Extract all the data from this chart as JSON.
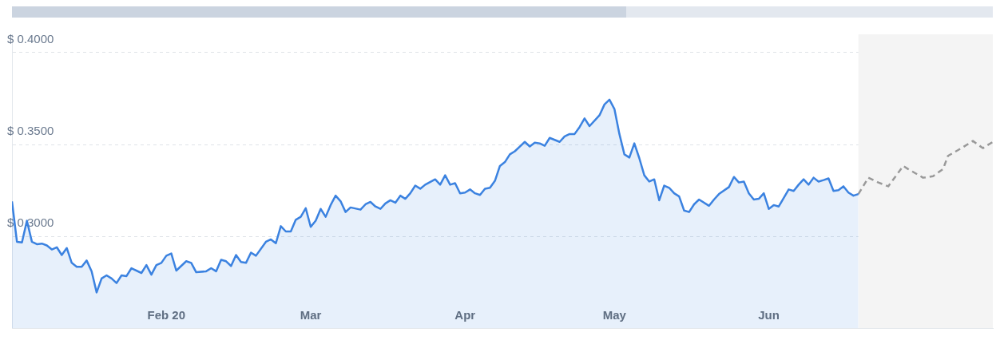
{
  "chart_data": {
    "type": "area",
    "xlim": [
      "2020-01-01",
      "2020-07-16"
    ],
    "xticks": [
      {
        "value": "2020-02-01",
        "label": "Feb 20"
      },
      {
        "value": "2020-03-01",
        "label": "Mar"
      },
      {
        "value": "2020-04-01",
        "label": "Apr"
      },
      {
        "value": "2020-05-01",
        "label": "May"
      },
      {
        "value": "2020-06-01",
        "label": "Jun"
      }
    ],
    "ylim": [
      0.25,
      0.41
    ],
    "yticks": [
      {
        "value": 0.3,
        "label": "$ 0.3000"
      },
      {
        "value": 0.35,
        "label": "$ 0.3500"
      },
      {
        "value": 0.4,
        "label": "$ 0.4000"
      }
    ],
    "grid": "y",
    "legend": false,
    "marker": "none",
    "bands": [
      {
        "axis": "x",
        "from": "2020-06-19",
        "to": "2020-07-16",
        "color": "#f4f4f4"
      }
    ],
    "series": [
      {
        "color": "#3b82e0",
        "line_style": "solid",
        "x": [
          "2020-01-01",
          "2020-01-02",
          "2020-01-03",
          "2020-01-04",
          "2020-01-05",
          "2020-01-06",
          "2020-01-07",
          "2020-01-08",
          "2020-01-09",
          "2020-01-10",
          "2020-01-11",
          "2020-01-12",
          "2020-01-13",
          "2020-01-14",
          "2020-01-15",
          "2020-01-16",
          "2020-01-17",
          "2020-01-18",
          "2020-01-19",
          "2020-01-20",
          "2020-01-21",
          "2020-01-22",
          "2020-01-23",
          "2020-01-24",
          "2020-01-25",
          "2020-01-27",
          "2020-01-28",
          "2020-01-29",
          "2020-01-30",
          "2020-01-31",
          "2020-02-01",
          "2020-02-02",
          "2020-02-03",
          "2020-02-05",
          "2020-02-06",
          "2020-02-07",
          "2020-02-09",
          "2020-02-10",
          "2020-02-11",
          "2020-02-12",
          "2020-02-13",
          "2020-02-14",
          "2020-02-15",
          "2020-02-16",
          "2020-02-17",
          "2020-02-18",
          "2020-02-19",
          "2020-02-21",
          "2020-02-22",
          "2020-02-23",
          "2020-02-24",
          "2020-02-25",
          "2020-02-26",
          "2020-02-27",
          "2020-02-28",
          "2020-02-29",
          "2020-03-01",
          "2020-03-02",
          "2020-03-03",
          "2020-03-04",
          "2020-03-05",
          "2020-03-06",
          "2020-03-07",
          "2020-03-08",
          "2020-03-09",
          "2020-03-11",
          "2020-03-12",
          "2020-03-13",
          "2020-03-14",
          "2020-03-15",
          "2020-03-16",
          "2020-03-17",
          "2020-03-18",
          "2020-03-19",
          "2020-03-20",
          "2020-03-21",
          "2020-03-22",
          "2020-03-23",
          "2020-03-24",
          "2020-03-26",
          "2020-03-27",
          "2020-03-28",
          "2020-03-29",
          "2020-03-30",
          "2020-03-31",
          "2020-04-01",
          "2020-04-02",
          "2020-04-03",
          "2020-04-04",
          "2020-04-05",
          "2020-04-06",
          "2020-04-07",
          "2020-04-08",
          "2020-04-09",
          "2020-04-10",
          "2020-04-11",
          "2020-04-12",
          "2020-04-13",
          "2020-04-14",
          "2020-04-15",
          "2020-04-16",
          "2020-04-17",
          "2020-04-18",
          "2020-04-20",
          "2020-04-21",
          "2020-04-22",
          "2020-04-23",
          "2020-04-24",
          "2020-04-25",
          "2020-04-26",
          "2020-04-28",
          "2020-04-29",
          "2020-04-30",
          "2020-05-01",
          "2020-05-02",
          "2020-05-03",
          "2020-05-04",
          "2020-05-05",
          "2020-05-06",
          "2020-05-07",
          "2020-05-08",
          "2020-05-09",
          "2020-05-10",
          "2020-05-11",
          "2020-05-12",
          "2020-05-13",
          "2020-05-14",
          "2020-05-15",
          "2020-05-16",
          "2020-05-17",
          "2020-05-18",
          "2020-05-20",
          "2020-05-21",
          "2020-05-22",
          "2020-05-24",
          "2020-05-25",
          "2020-05-26",
          "2020-05-27",
          "2020-05-28",
          "2020-05-29",
          "2020-05-30",
          "2020-05-31",
          "2020-06-01",
          "2020-06-02",
          "2020-06-03",
          "2020-06-05",
          "2020-06-06",
          "2020-06-07",
          "2020-06-08",
          "2020-06-09",
          "2020-06-10",
          "2020-06-11",
          "2020-06-12",
          "2020-06-13",
          "2020-06-14",
          "2020-06-15",
          "2020-06-16",
          "2020-06-17",
          "2020-06-18",
          "2020-06-19"
        ],
        "values": [
          0.319,
          0.297,
          0.2966,
          0.3085,
          0.297,
          0.2957,
          0.296,
          0.295,
          0.2928,
          0.294,
          0.2898,
          0.2936,
          0.2855,
          0.2834,
          0.2834,
          0.2868,
          0.2809,
          0.2694,
          0.277,
          0.2787,
          0.277,
          0.2745,
          0.2787,
          0.2783,
          0.2826,
          0.28,
          0.2843,
          0.2791,
          0.2843,
          0.2855,
          0.2894,
          0.2906,
          0.2813,
          0.2864,
          0.2855,
          0.2804,
          0.2809,
          0.2826,
          0.2809,
          0.2872,
          0.2864,
          0.2838,
          0.2898,
          0.286,
          0.2855,
          0.2911,
          0.2894,
          0.297,
          0.2983,
          0.2962,
          0.3055,
          0.3026,
          0.3026,
          0.309,
          0.3106,
          0.3153,
          0.3051,
          0.3085,
          0.3149,
          0.3106,
          0.317,
          0.3221,
          0.3191,
          0.3132,
          0.3157,
          0.3145,
          0.3174,
          0.3187,
          0.3162,
          0.3149,
          0.3179,
          0.3196,
          0.3183,
          0.3221,
          0.3204,
          0.3234,
          0.3276,
          0.3259,
          0.3281,
          0.331,
          0.3281,
          0.3332,
          0.3281,
          0.3289,
          0.3234,
          0.3238,
          0.3255,
          0.3234,
          0.3225,
          0.3259,
          0.3264,
          0.3302,
          0.3383,
          0.3404,
          0.3446,
          0.3463,
          0.3489,
          0.3514,
          0.3489,
          0.351,
          0.3506,
          0.3493,
          0.3536,
          0.3514,
          0.3544,
          0.3557,
          0.3557,
          0.3595,
          0.3642,
          0.36,
          0.3659,
          0.3718,
          0.3744,
          0.3693,
          0.3557,
          0.3446,
          0.3429,
          0.3506,
          0.3425,
          0.3332,
          0.3298,
          0.331,
          0.3196,
          0.3276,
          0.3264,
          0.3234,
          0.3217,
          0.314,
          0.3132,
          0.3174,
          0.32,
          0.3166,
          0.32,
          0.323,
          0.3268,
          0.3323,
          0.3293,
          0.3298,
          0.3234,
          0.32,
          0.3204,
          0.3234,
          0.3149,
          0.317,
          0.3162,
          0.3255,
          0.3247,
          0.3281,
          0.331,
          0.3281,
          0.3319,
          0.3298,
          0.3306,
          0.3315,
          0.3247,
          0.3251,
          0.3272,
          0.3238,
          0.3221,
          0.323
        ]
      },
      {
        "type": "line",
        "color": "#999999",
        "line_style": "dashed",
        "x": [
          "2020-06-19",
          "2020-06-21",
          "2020-06-23",
          "2020-06-25",
          "2020-06-28",
          "2020-06-29",
          "2020-07-02",
          "2020-07-04",
          "2020-07-06",
          "2020-07-07",
          "2020-07-10",
          "2020-07-12",
          "2020-07-14",
          "2020-07-16"
        ],
        "values": [
          0.323,
          0.3319,
          0.3293,
          0.3272,
          0.3383,
          0.3366,
          0.3319,
          0.3327,
          0.3366,
          0.3438,
          0.3485,
          0.3519,
          0.348,
          0.3514
        ]
      }
    ]
  }
}
